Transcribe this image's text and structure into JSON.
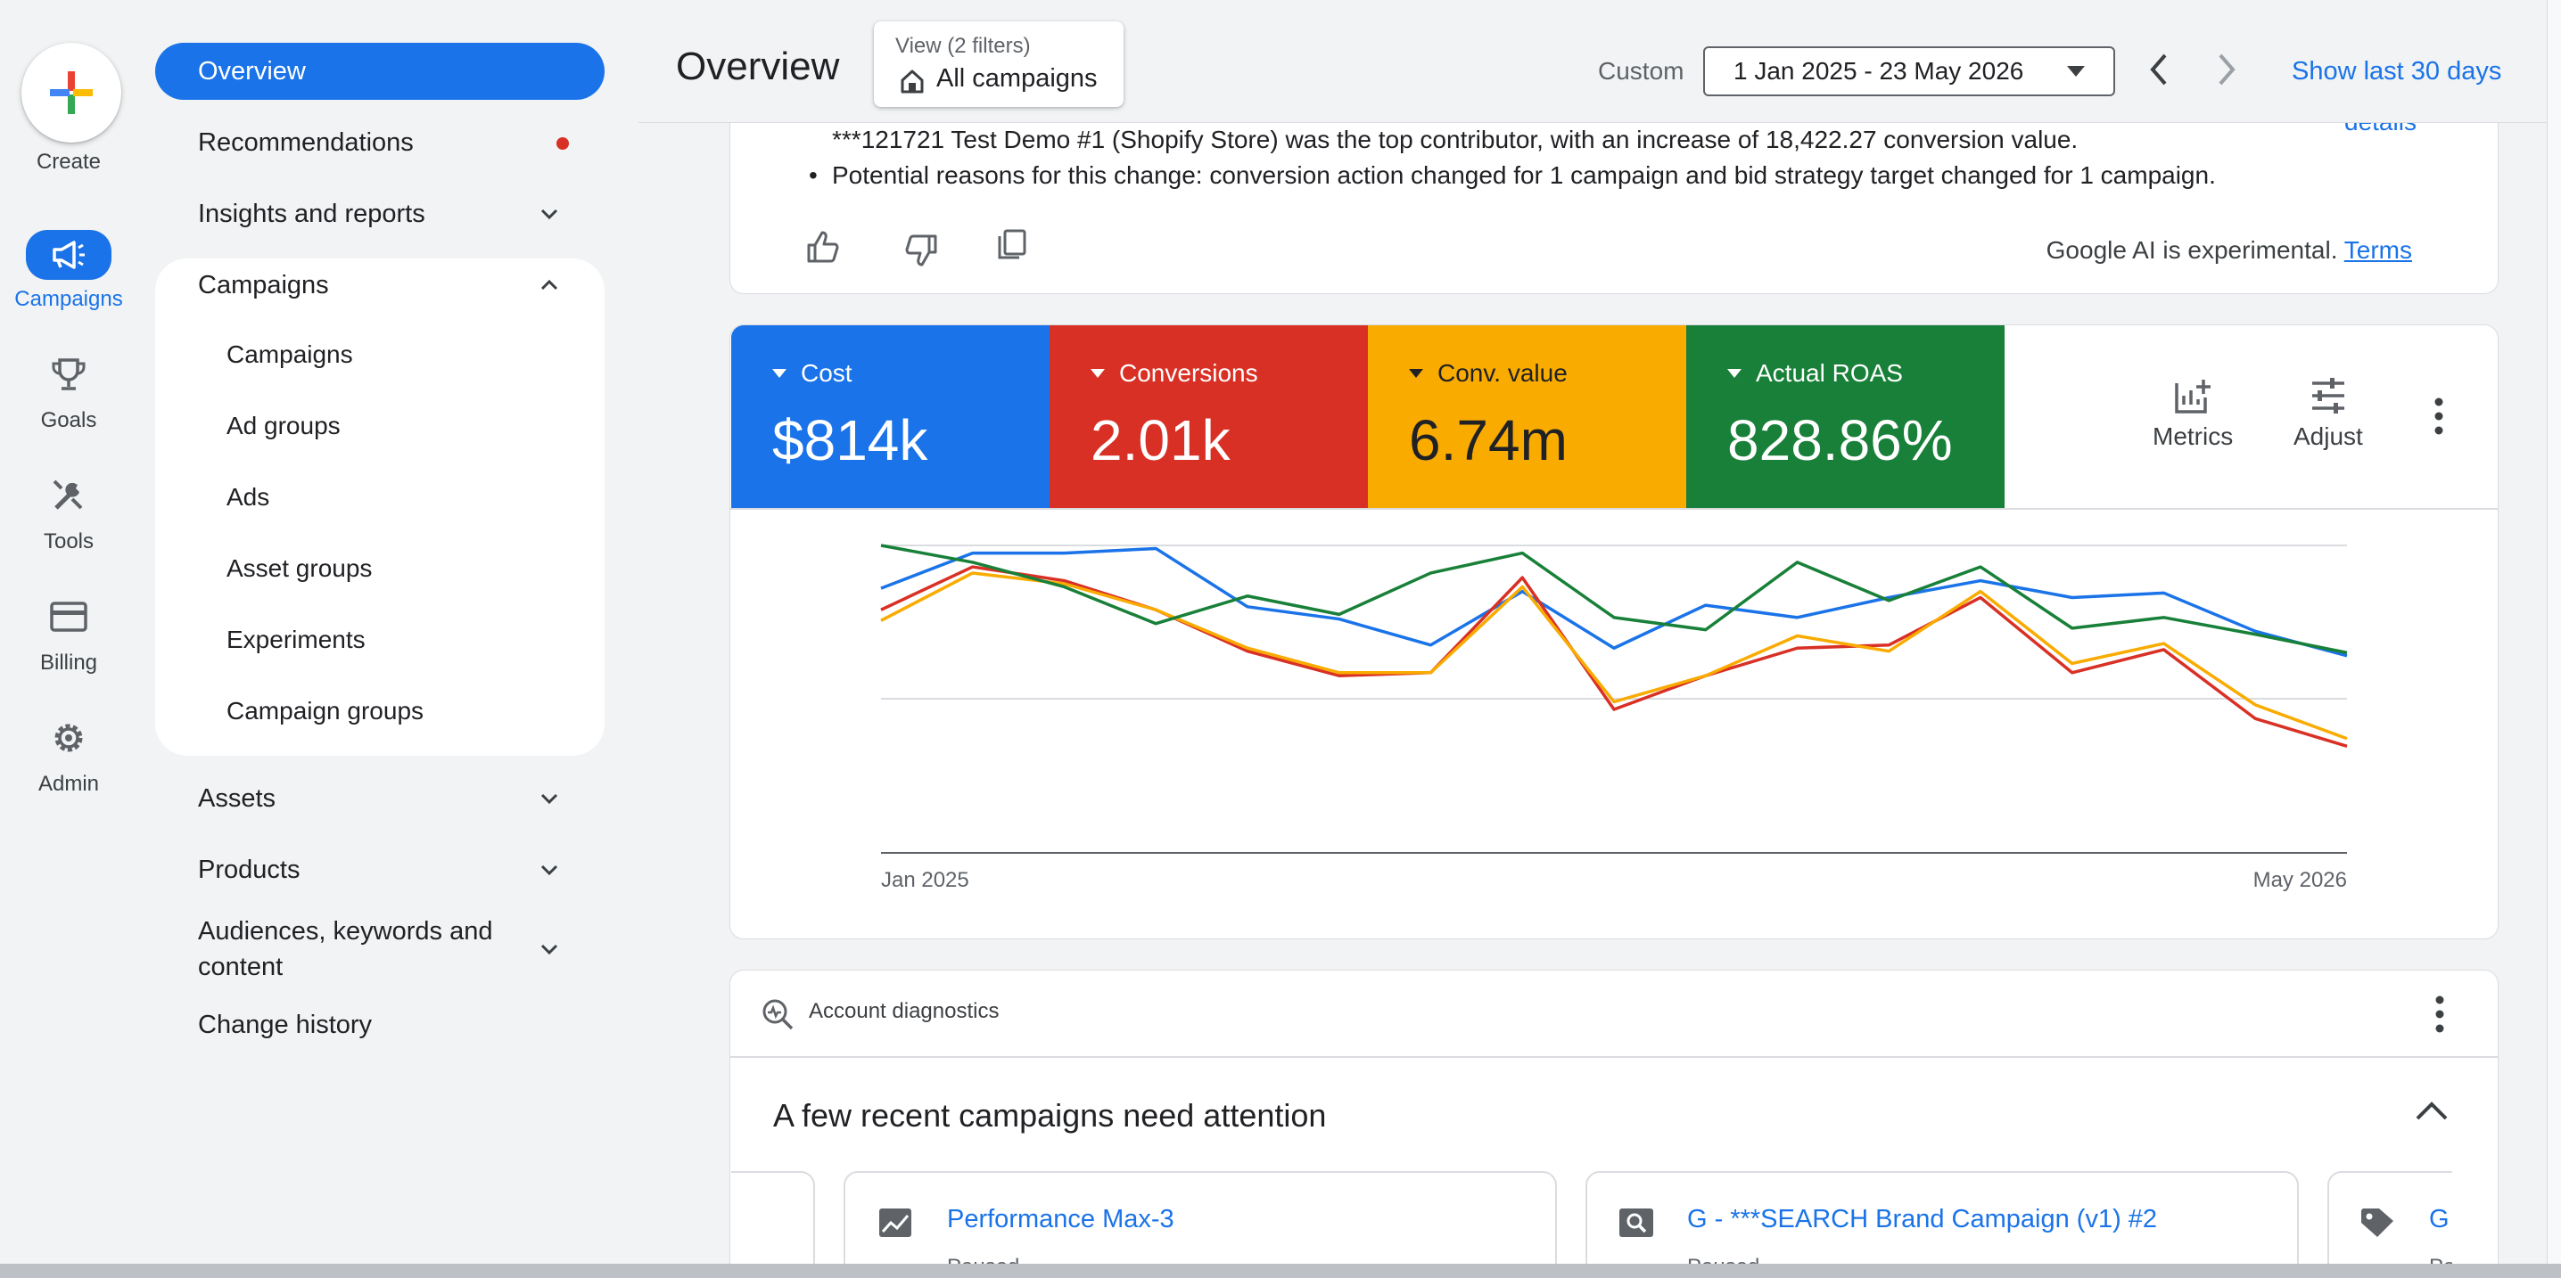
{
  "rail": {
    "create_label": "Create",
    "items": [
      {
        "label": "Campaigns",
        "icon": "megaphone-icon",
        "active": true
      },
      {
        "label": "Goals",
        "icon": "trophy-icon"
      },
      {
        "label": "Tools",
        "icon": "tools-icon"
      },
      {
        "label": "Billing",
        "icon": "credit-card-icon"
      },
      {
        "label": "Admin",
        "icon": "gear-icon"
      }
    ]
  },
  "sidebar": {
    "overview": "Overview",
    "recommendations": "Recommendations",
    "insights": "Insights and reports",
    "campaigns_section": "Campaigns",
    "sub_items": [
      "Campaigns",
      "Ad groups",
      "Ads",
      "Asset groups",
      "Experiments",
      "Campaign groups"
    ],
    "assets": "Assets",
    "products": "Products",
    "audiences_line1": "Audiences, keywords and",
    "audiences_line2": "content",
    "change_history": "Change history"
  },
  "header": {
    "title": "Overview",
    "view_label": "View (2 filters)",
    "view_value": "All campaigns",
    "custom_label": "Custom",
    "date_range": "1 Jan 2025 - 23 May 2026",
    "show_last": "Show last 30 days"
  },
  "insight": {
    "line1": "***121721 Test Demo #1 (Shopify Store) was the top contributor, with an increase of 18,422.27 conversion value.",
    "line2": "Potential reasons for this change: conversion action changed for 1 campaign and bid strategy target changed for 1 campaign.",
    "details_link": "details",
    "disclaimer": "Google AI is experimental.",
    "terms": "Terms"
  },
  "metrics": [
    {
      "name": "Cost",
      "value": "$814k",
      "color": "#1a73e8"
    },
    {
      "name": "Conversions",
      "value": "2.01k",
      "color": "#d93025"
    },
    {
      "name": "Conv. value",
      "value": "6.74m",
      "color": "#f9ab00"
    },
    {
      "name": "Actual ROAS",
      "value": "828.86%",
      "color": "#188038"
    }
  ],
  "metric_tools": {
    "metrics": "Metrics",
    "adjust": "Adjust"
  },
  "chart_data": {
    "type": "line",
    "x": [
      "Jan 2025",
      "Feb 2025",
      "Mar 2025",
      "Apr 2025",
      "May 2025",
      "Jun 2025",
      "Jul 2025",
      "Aug 2025",
      "Sep 2025",
      "Oct 2025",
      "Nov 2025",
      "Dec 2025",
      "Jan 2026",
      "Feb 2026",
      "Mar 2026",
      "Apr 2026",
      "May 2026"
    ],
    "tick_labels": [
      "Jan 2025",
      "May 2026"
    ],
    "grid": true,
    "normalized": true,
    "series": [
      {
        "name": "Cost",
        "color": "#1a73e8",
        "values": [
          0.72,
          0.95,
          0.95,
          0.98,
          0.6,
          0.52,
          0.35,
          0.7,
          0.33,
          0.61,
          0.53,
          0.66,
          0.77,
          0.66,
          0.69,
          0.44,
          0.28
        ]
      },
      {
        "name": "Conversions",
        "color": "#d93025",
        "values": [
          0.58,
          0.86,
          0.77,
          0.58,
          0.31,
          0.15,
          0.17,
          0.79,
          -0.07,
          0.15,
          0.33,
          0.35,
          0.66,
          0.17,
          0.32,
          -0.13,
          -0.31
        ]
      },
      {
        "name": "Conv. value",
        "color": "#f9ab00",
        "values": [
          0.51,
          0.82,
          0.75,
          0.58,
          0.33,
          0.17,
          0.17,
          0.73,
          -0.02,
          0.15,
          0.41,
          0.31,
          0.7,
          0.23,
          0.36,
          -0.04,
          -0.26
        ]
      },
      {
        "name": "Actual ROAS",
        "color": "#188038",
        "values": [
          1.0,
          0.89,
          0.73,
          0.49,
          0.67,
          0.55,
          0.82,
          0.95,
          0.53,
          0.45,
          0.89,
          0.64,
          0.86,
          0.46,
          0.53,
          0.42,
          0.3
        ]
      }
    ]
  },
  "diagnostics": {
    "title": "Account diagnostics",
    "heading": "A few recent campaigns need attention",
    "campaigns": [
      {
        "name": "Performance Max-3",
        "status": "Paused",
        "icon": "chart-icon"
      },
      {
        "name": "G - ***SEARCH Brand Campaign (v1) #2",
        "status": "Paused",
        "icon": "search-icon"
      },
      {
        "name": "G",
        "status": "Pa",
        "icon": "tag-icon"
      }
    ]
  }
}
